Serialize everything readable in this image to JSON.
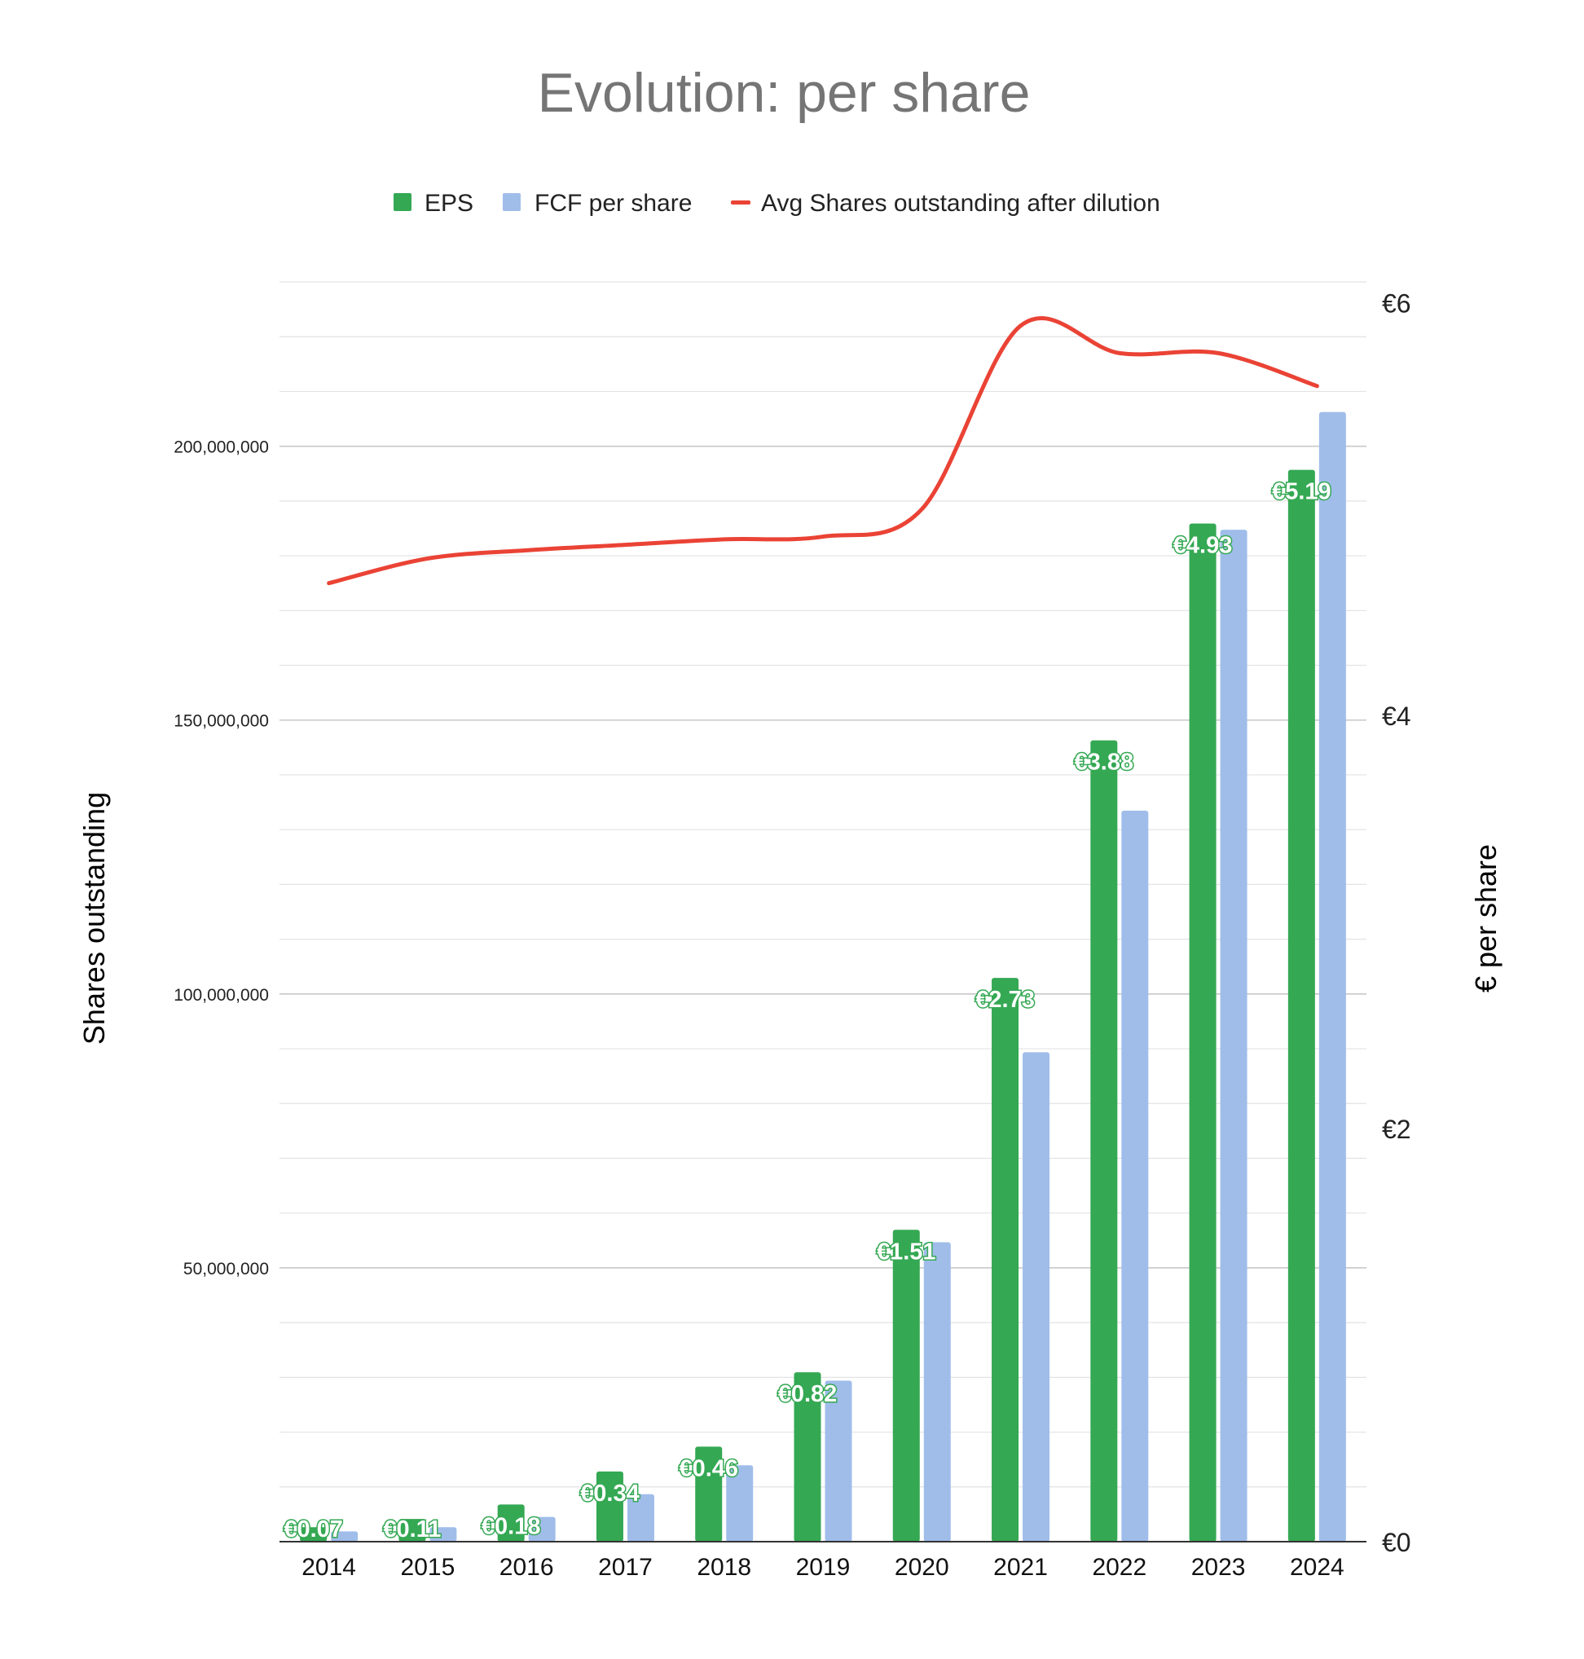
{
  "chart_data": {
    "type": "bar",
    "title": "Evolution: per share",
    "categories": [
      "2014",
      "2015",
      "2016",
      "2017",
      "2018",
      "2019",
      "2020",
      "2021",
      "2022",
      "2023",
      "2024"
    ],
    "series": [
      {
        "name": "EPS",
        "kind": "bar",
        "axis": "right",
        "color": "#34a853",
        "values": [
          0.07,
          0.11,
          0.18,
          0.34,
          0.46,
          0.82,
          1.51,
          2.73,
          3.88,
          4.93,
          5.19
        ],
        "data_labels": [
          "€0.07",
          "€0.11",
          "€0.18",
          "€0.34",
          "€0.46",
          "€0.82",
          "€1.51",
          "€2.73",
          "€3.88",
          "€4.93",
          "€5.19"
        ]
      },
      {
        "name": "FCF per share",
        "kind": "bar",
        "axis": "right",
        "color": "#a0bdea",
        "values": [
          0.05,
          0.07,
          0.12,
          0.23,
          0.37,
          0.78,
          1.45,
          2.37,
          3.54,
          4.9,
          5.47
        ]
      },
      {
        "name": "Avg Shares outstanding after dilution",
        "kind": "line",
        "axis": "left",
        "color": "#ea4335",
        "values": [
          175000000,
          179500000,
          181000000,
          182000000,
          183000000,
          183500000,
          188500000,
          222000000,
          217000000,
          217000000,
          211000000
        ]
      }
    ],
    "y_left": {
      "label": "Shares outstanding",
      "range": [
        0,
        230000000
      ],
      "ticks": [
        50000000,
        100000000,
        150000000,
        200000000
      ],
      "tick_labels": [
        "50,000,000",
        "100,000,000",
        "150,000,000",
        "200,000,000"
      ]
    },
    "y_right": {
      "label": "€ per share",
      "range": [
        0,
        6.1
      ],
      "ticks": [
        0,
        2,
        4,
        6
      ],
      "tick_labels": [
        "€0",
        "€2",
        "€4",
        "€6"
      ]
    },
    "grid": true,
    "legend_position": "top"
  }
}
